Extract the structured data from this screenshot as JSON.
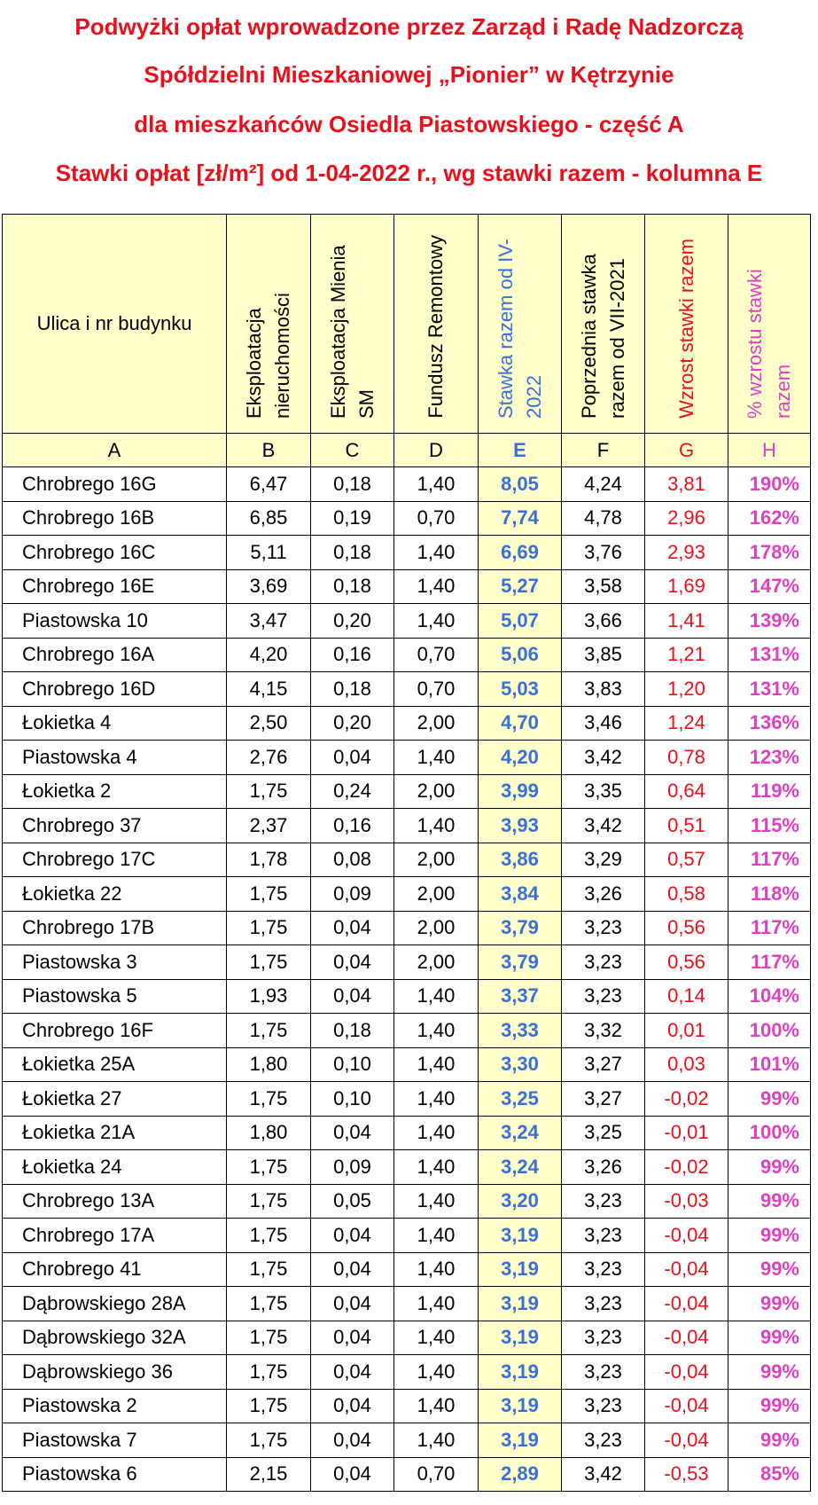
{
  "title": [
    "Podwyżki opłat wprowadzone przez Zarząd i Radę Nadzorczą",
    "Spółdzielni Mieszkaniowej „Pionier” w Kętrzynie",
    "dla mieszkańców Osiedla Piastowskiego - część A",
    "Stawki opłat [zł/m²] od 1-04-2022 r., wg stawki razem - kolumna E"
  ],
  "table": {
    "header": [
      "Ulica i nr budynku",
      "Eksploatacja nieruchomości",
      "Eksploatacja Mienia SM",
      "Fundusz Remontowy",
      "Stawka razem od IV-2022",
      "Poprzednia stawka razem od VII-2021",
      "Wzrost stawki razem",
      "% wzrostu stawki razem"
    ],
    "letters": [
      "A",
      "B",
      "C",
      "D",
      "E",
      "F",
      "G",
      "H"
    ],
    "rows": [
      [
        "Chrobrego 16G",
        "6,47",
        "0,18",
        "1,40",
        "8,05",
        "4,24",
        "3,81",
        "190%"
      ],
      [
        "Chrobrego 16B",
        "6,85",
        "0,19",
        "0,70",
        "7,74",
        "4,78",
        "2,96",
        "162%"
      ],
      [
        "Chrobrego 16C",
        "5,11",
        "0,18",
        "1,40",
        "6,69",
        "3,76",
        "2,93",
        "178%"
      ],
      [
        "Chrobrego 16E",
        "3,69",
        "0,18",
        "1,40",
        "5,27",
        "3,58",
        "1,69",
        "147%"
      ],
      [
        "Piastowska 10",
        "3,47",
        "0,20",
        "1,40",
        "5,07",
        "3,66",
        "1,41",
        "139%"
      ],
      [
        "Chrobrego 16A",
        "4,20",
        "0,16",
        "0,70",
        "5,06",
        "3,85",
        "1,21",
        "131%"
      ],
      [
        "Chrobrego 16D",
        "4,15",
        "0,18",
        "0,70",
        "5,03",
        "3,83",
        "1,20",
        "131%"
      ],
      [
        "Łokietka 4",
        "2,50",
        "0,20",
        "2,00",
        "4,70",
        "3,46",
        "1,24",
        "136%"
      ],
      [
        "Piastowska 4",
        "2,76",
        "0,04",
        "1,40",
        "4,20",
        "3,42",
        "0,78",
        "123%"
      ],
      [
        "Łokietka 2",
        "1,75",
        "0,24",
        "2,00",
        "3,99",
        "3,35",
        "0,64",
        "119%"
      ],
      [
        "Chrobrego 37",
        "2,37",
        "0,16",
        "1,40",
        "3,93",
        "3,42",
        "0,51",
        "115%"
      ],
      [
        "Chrobrego 17C",
        "1,78",
        "0,08",
        "2,00",
        "3,86",
        "3,29",
        "0,57",
        "117%"
      ],
      [
        "Łokietka 22",
        "1,75",
        "0,09",
        "2,00",
        "3,84",
        "3,26",
        "0,58",
        "118%"
      ],
      [
        "Chrobrego 17B",
        "1,75",
        "0,04",
        "2,00",
        "3,79",
        "3,23",
        "0,56",
        "117%"
      ],
      [
        "Piastowska 3",
        "1,75",
        "0,04",
        "2,00",
        "3,79",
        "3,23",
        "0,56",
        "117%"
      ],
      [
        "Piastowska 5",
        "1,93",
        "0,04",
        "1,40",
        "3,37",
        "3,23",
        "0,14",
        "104%"
      ],
      [
        "Chrobrego 16F",
        "1,75",
        "0,18",
        "1,40",
        "3,33",
        "3,32",
        "0,01",
        "100%"
      ],
      [
        "Łokietka 25A",
        "1,80",
        "0,10",
        "1,40",
        "3,30",
        "3,27",
        "0,03",
        "101%"
      ],
      [
        "Łokietka 27",
        "1,75",
        "0,10",
        "1,40",
        "3,25",
        "3,27",
        "-0,02",
        "99%"
      ],
      [
        "Łokietka 21A",
        "1,80",
        "0,04",
        "1,40",
        "3,24",
        "3,25",
        "-0,01",
        "100%"
      ],
      [
        "Łokietka 24",
        "1,75",
        "0,09",
        "1,40",
        "3,24",
        "3,26",
        "-0,02",
        "99%"
      ],
      [
        "Chrobrego 13A",
        "1,75",
        "0,05",
        "1,40",
        "3,20",
        "3,23",
        "-0,03",
        "99%"
      ],
      [
        "Chrobrego 17A",
        "1,75",
        "0,04",
        "1,40",
        "3,19",
        "3,23",
        "-0,04",
        "99%"
      ],
      [
        "Chrobrego 41",
        "1,75",
        "0,04",
        "1,40",
        "3,19",
        "3,23",
        "-0,04",
        "99%"
      ],
      [
        "Dąbrowskiego 28A",
        "1,75",
        "0,04",
        "1,40",
        "3,19",
        "3,23",
        "-0,04",
        "99%"
      ],
      [
        "Dąbrowskiego 32A",
        "1,75",
        "0,04",
        "1,40",
        "3,19",
        "3,23",
        "-0,04",
        "99%"
      ],
      [
        "Dąbrowskiego 36",
        "1,75",
        "0,04",
        "1,40",
        "3,19",
        "3,23",
        "-0,04",
        "99%"
      ],
      [
        "Piastowska 2",
        "1,75",
        "0,04",
        "1,40",
        "3,19",
        "3,23",
        "-0,04",
        "99%"
      ],
      [
        "Piastowska 7",
        "1,75",
        "0,04",
        "1,40",
        "3,19",
        "3,23",
        "-0,04",
        "99%"
      ],
      [
        "Piastowska 6",
        "2,15",
        "0,04",
        "0,70",
        "2,89",
        "3,42",
        "-0,53",
        "85%"
      ]
    ]
  }
}
